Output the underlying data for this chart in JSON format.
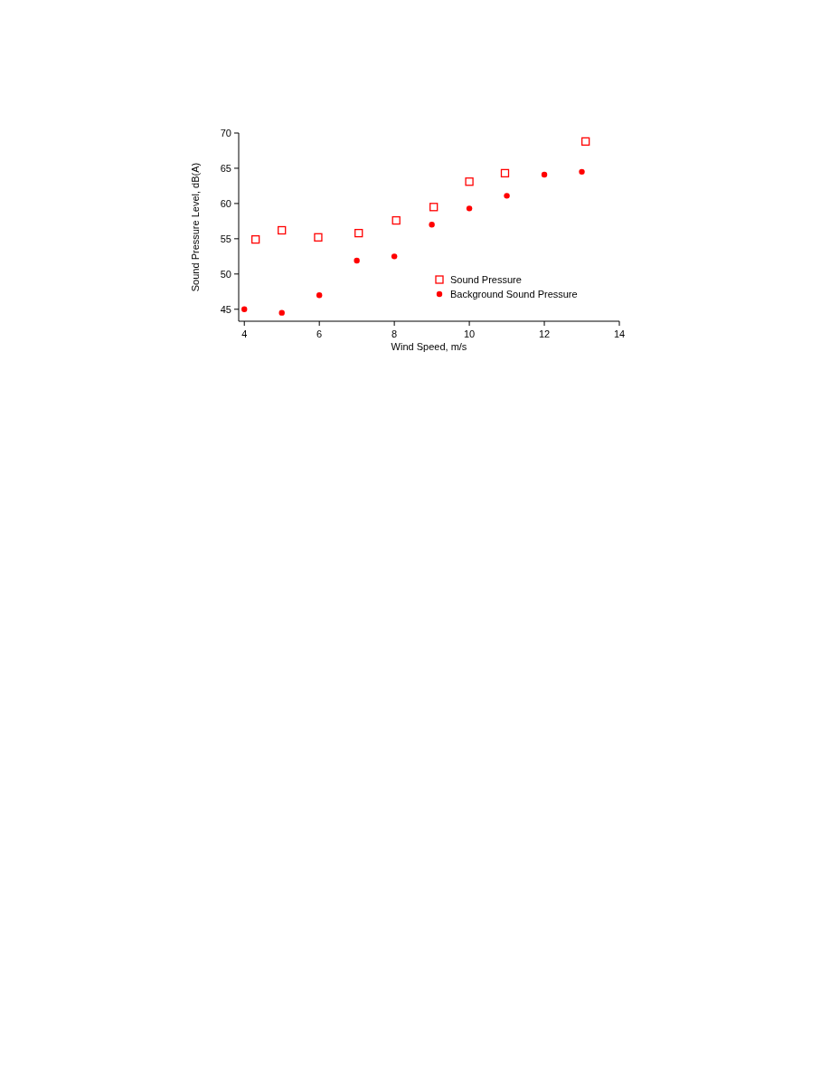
{
  "chart_data": {
    "type": "scatter",
    "xlabel": "Wind Speed, m/s",
    "ylabel": "Sound Pressure Level, dB(A)",
    "xlim": [
      3.85,
      14
    ],
    "xticks": [
      4,
      6,
      8,
      10,
      12,
      14
    ],
    "ylim": [
      43.3,
      70
    ],
    "yticks": [
      45,
      50,
      55,
      60,
      65,
      70
    ],
    "grid": false,
    "legend": "bottom right",
    "series": [
      {
        "name": "Sound Pressure",
        "color": "#ff0000",
        "marker": "square",
        "x": [
          4.3,
          5.0,
          5.97,
          7.05,
          8.05,
          9.05,
          10.0,
          10.95,
          13.1
        ],
        "values": [
          54.9,
          56.2,
          55.2,
          55.8,
          57.6,
          59.5,
          63.1,
          64.3,
          68.8
        ]
      },
      {
        "name": "Background Sound Pressure",
        "color": "#ff0000",
        "marker": "circle",
        "x": [
          4,
          5,
          6,
          7,
          8,
          9,
          10,
          11,
          12,
          13
        ],
        "values": [
          45.0,
          44.5,
          47.0,
          51.9,
          52.5,
          57.0,
          59.3,
          61.1,
          64.1,
          64.5
        ]
      }
    ]
  }
}
